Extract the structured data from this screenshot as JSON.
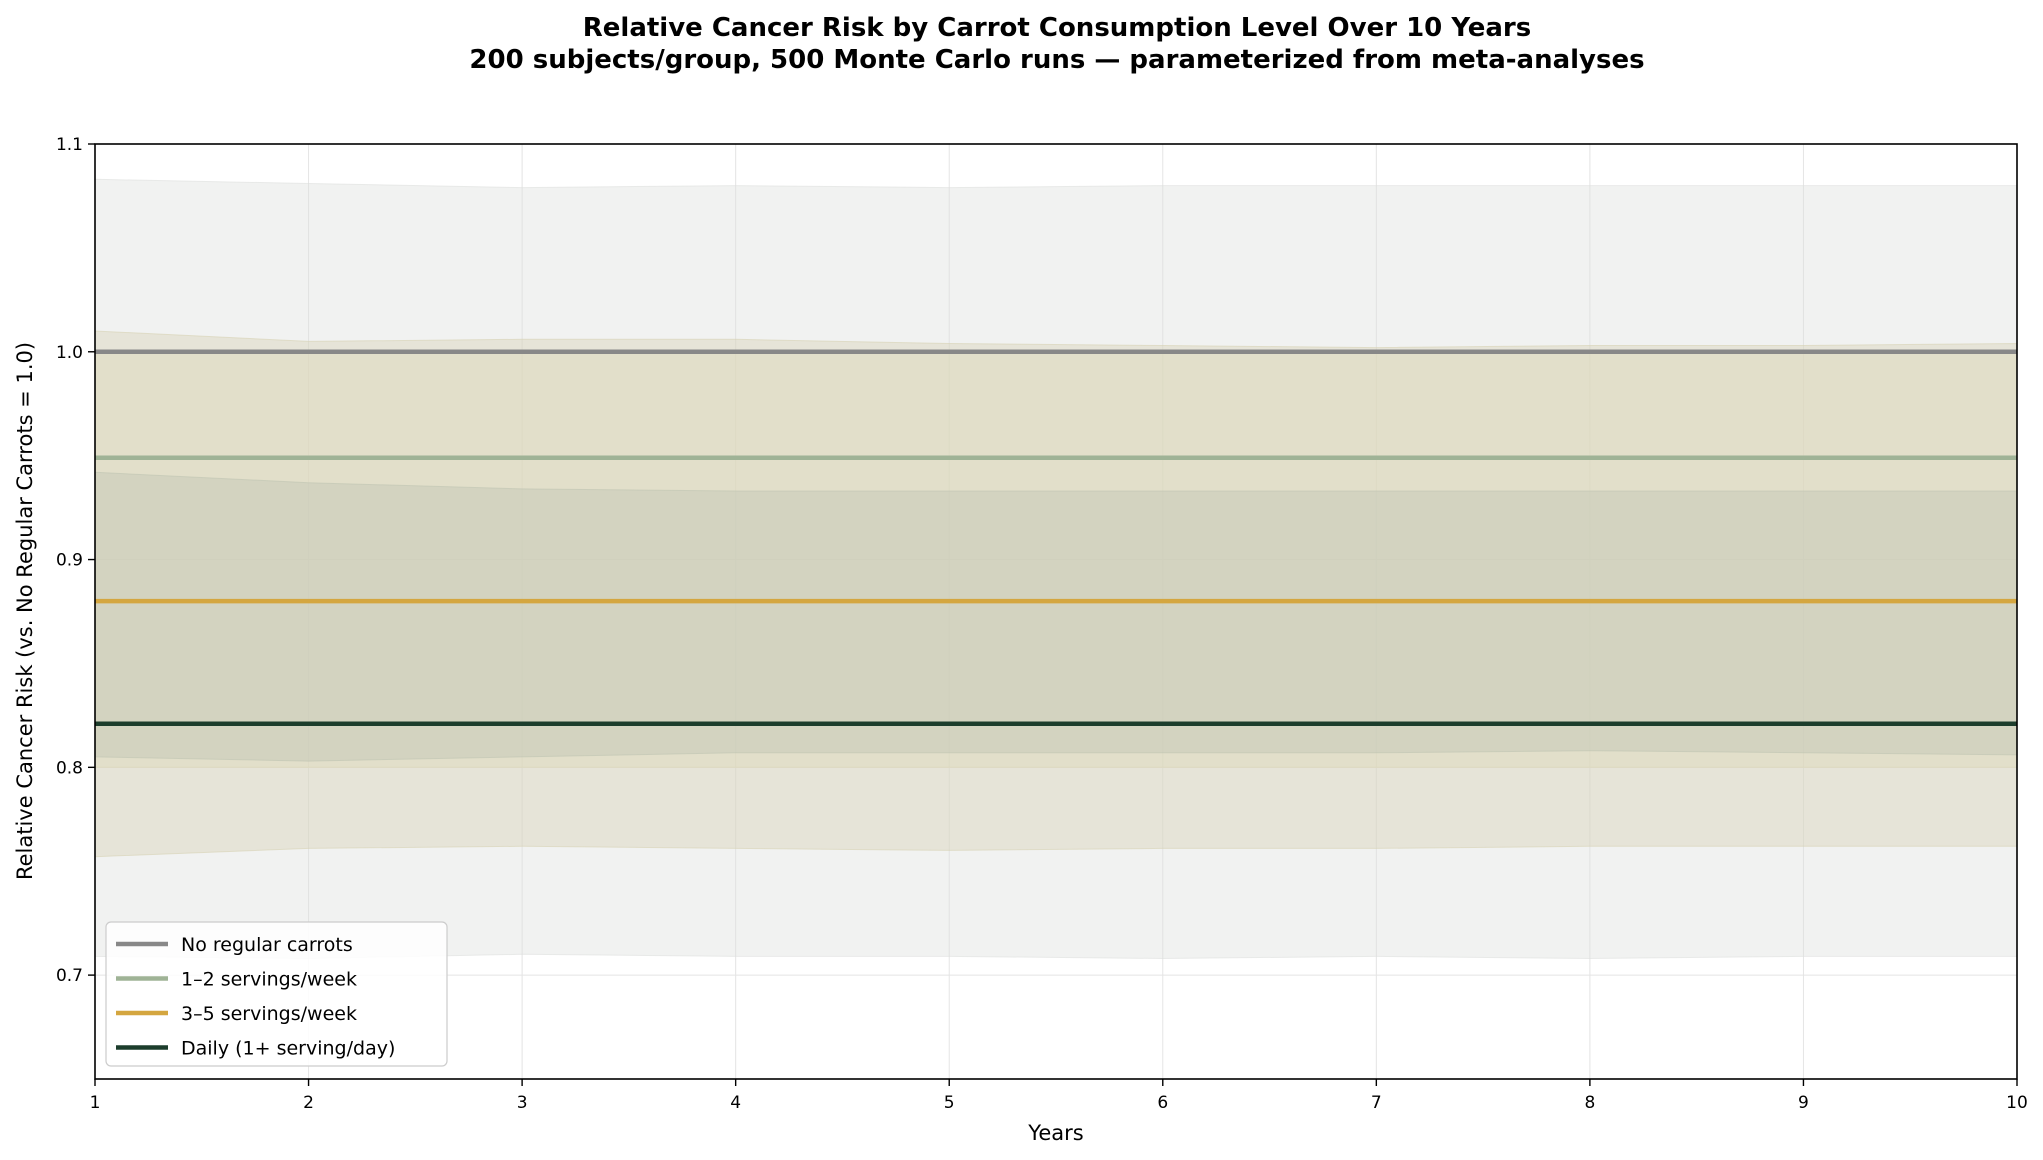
{
  "chart_data": {
    "type": "line",
    "title": "Relative Cancer Risk by Carrot Consumption Level Over 10 Years",
    "subtitle": "200 subjects/group, 500 Monte Carlo runs — parameterized from meta-analyses",
    "xlabel": "Years",
    "ylabel": "Relative Cancer Risk (vs. No Regular Carrots = 1.0)",
    "xlim": [
      1,
      10
    ],
    "ylim": [
      0.65,
      1.1
    ],
    "x_ticks": [
      1,
      2,
      3,
      4,
      5,
      6,
      7,
      8,
      9,
      10
    ],
    "y_ticks": [
      0.7,
      0.8,
      0.9,
      1.0,
      1.1
    ],
    "y_tick_labels": [
      "0.7",
      "0.8",
      "0.9",
      "1.0",
      "1.1"
    ],
    "grid": true,
    "legend_position": "lower-left",
    "x": [
      1,
      2,
      3,
      4,
      5,
      6,
      7,
      8,
      9,
      10
    ],
    "series": [
      {
        "name": "No regular carrots",
        "color": "#888888",
        "band_color": "#dde0dd",
        "values": [
          1.0,
          1.0,
          1.0,
          1.0,
          1.0,
          1.0,
          1.0,
          1.0,
          1.0,
          1.0
        ],
        "upper": [
          1.083,
          1.081,
          1.079,
          1.08,
          1.079,
          1.08,
          1.08,
          1.08,
          1.08,
          1.08
        ],
        "lower": [
          0.709,
          0.708,
          0.71,
          0.709,
          0.709,
          0.708,
          0.709,
          0.708,
          0.709,
          0.709
        ]
      },
      {
        "name": "1–2 servings/week",
        "color": "#9fb396",
        "band_color": "#d7d2b4",
        "values": [
          0.949,
          0.949,
          0.949,
          0.949,
          0.949,
          0.949,
          0.949,
          0.949,
          0.949,
          0.949
        ],
        "upper": [
          1.01,
          1.005,
          1.006,
          1.006,
          1.004,
          1.003,
          1.002,
          1.003,
          1.003,
          1.004
        ],
        "lower": [
          0.757,
          0.761,
          0.762,
          0.761,
          0.76,
          0.761,
          0.761,
          0.762,
          0.762,
          0.762
        ]
      },
      {
        "name": "3–5 servings/week",
        "color": "#d4a640",
        "band_color": "#ddd8b8",
        "values": [
          0.88,
          0.88,
          0.88,
          0.88,
          0.88,
          0.88,
          0.88,
          0.88,
          0.88,
          0.88
        ],
        "upper": [
          1.0,
          1.0,
          1.0,
          1.0,
          1.0,
          1.0,
          1.0,
          1.0,
          1.0,
          1.0
        ],
        "lower": [
          0.8,
          0.8,
          0.8,
          0.8,
          0.8,
          0.8,
          0.8,
          0.8,
          0.8,
          0.8
        ]
      },
      {
        "name": "Daily (1+ serving/day)",
        "color": "#1c3d2c",
        "band_color": "#bfc4b2",
        "values": [
          0.821,
          0.821,
          0.821,
          0.821,
          0.821,
          0.821,
          0.821,
          0.821,
          0.821,
          0.821
        ],
        "upper": [
          0.942,
          0.937,
          0.934,
          0.933,
          0.933,
          0.933,
          0.933,
          0.933,
          0.933,
          0.933
        ],
        "lower": [
          0.805,
          0.803,
          0.805,
          0.807,
          0.807,
          0.807,
          0.807,
          0.808,
          0.807,
          0.806
        ]
      }
    ]
  }
}
